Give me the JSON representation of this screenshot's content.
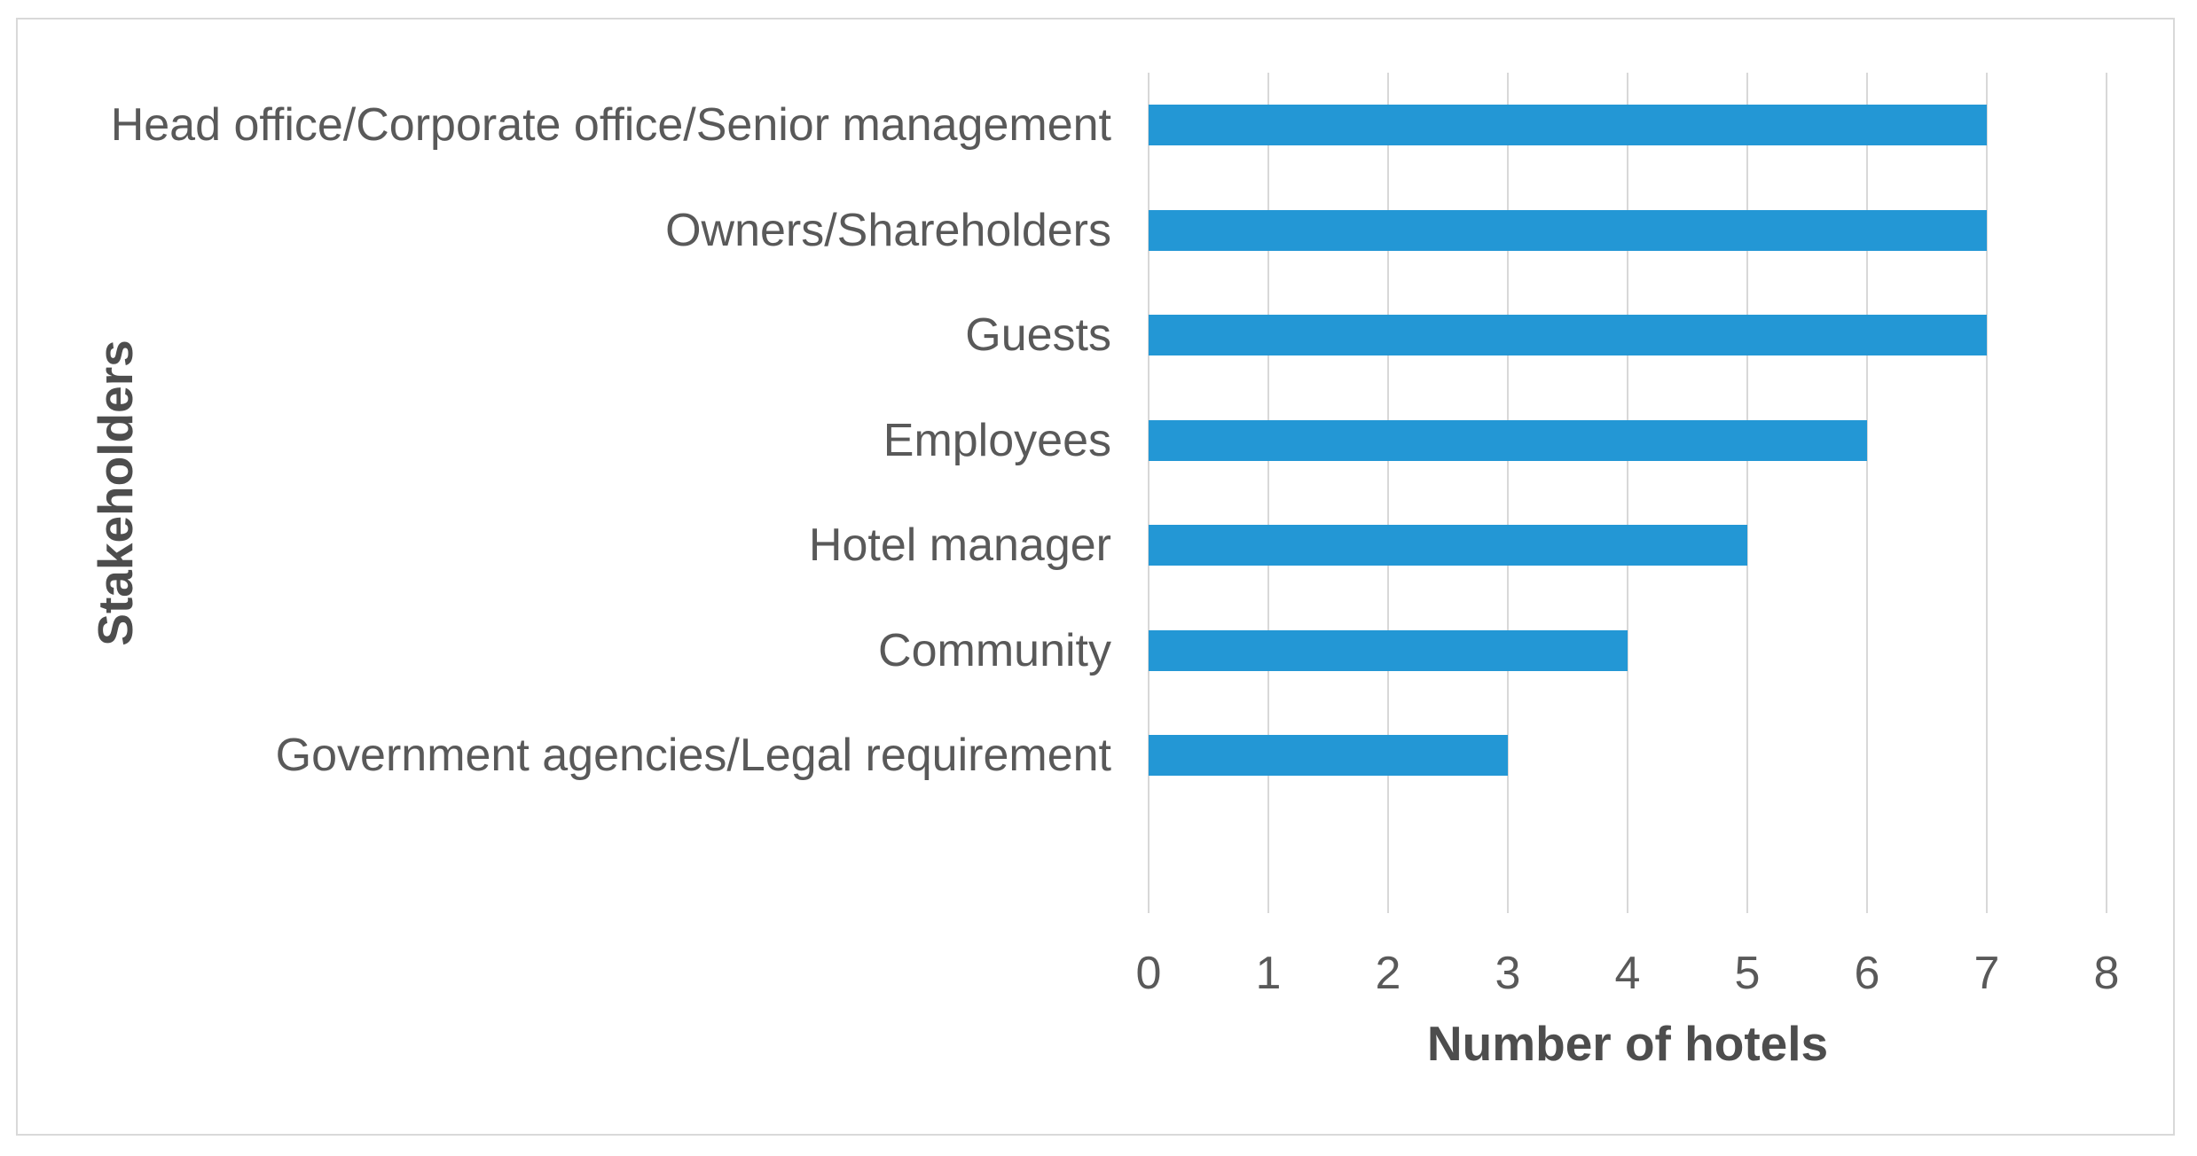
{
  "chart_data": {
    "type": "bar",
    "orientation": "horizontal",
    "categories": [
      "Head office/Corporate office/Senior management",
      "Owners/Shareholders",
      "Guests",
      "Employees",
      "Hotel manager",
      "Community",
      "Government agencies/Legal requirement"
    ],
    "values": [
      7,
      7,
      7,
      6,
      5,
      4,
      3
    ],
    "xlabel": "Number of hotels",
    "ylabel": "Stakeholders",
    "xlim": [
      0,
      8
    ],
    "xticks": [
      "0",
      "1",
      "2",
      "3",
      "4",
      "5",
      "6",
      "7",
      "8"
    ],
    "grid": "vertical-major-on",
    "legend": "none",
    "title": "",
    "colors": {
      "bar_fill": "#2397D5",
      "gridline": "#D8D8D8",
      "frame_border": "#D9D9D9",
      "tick_label": "#595959",
      "category_label": "#595959",
      "axis_title": "#4D4D4D",
      "background": "#FFFFFF"
    }
  }
}
